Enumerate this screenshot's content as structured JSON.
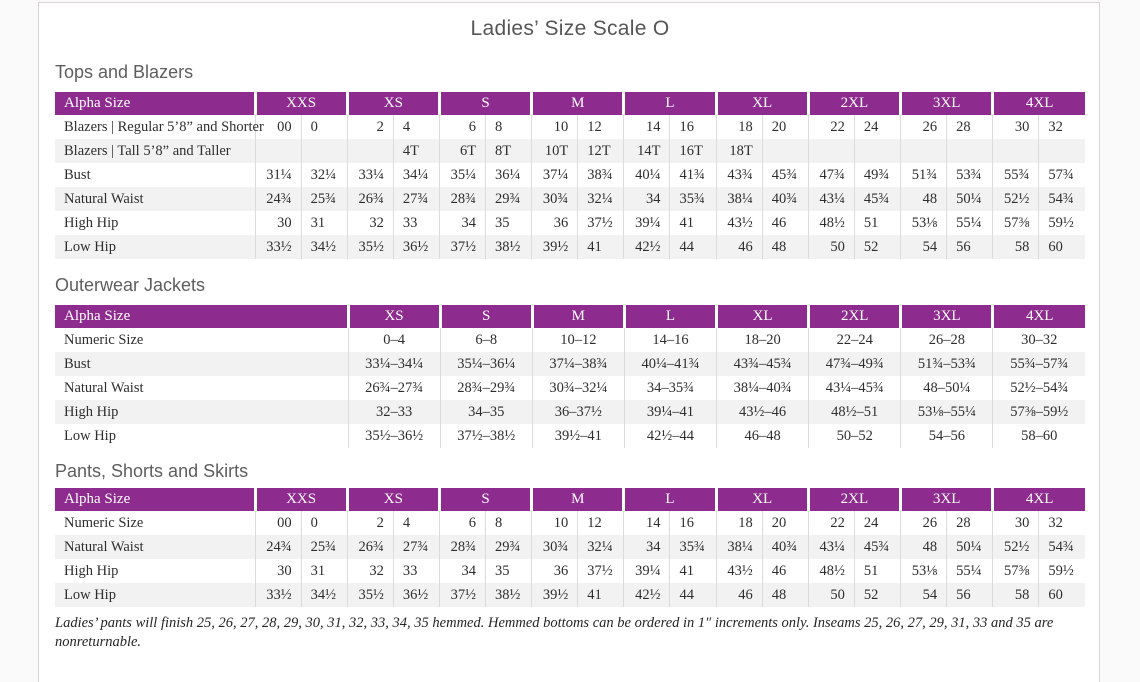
{
  "page": {
    "title": "Ladies’ Size Scale O"
  },
  "colors": {
    "header_purple": "#8e2b8e",
    "row_alt_gray": "#f2f2f2",
    "heading_gray": "#5e5e5e",
    "page_border": "#d9d3d9"
  },
  "sections": [
    {
      "heading": "Tops and Blazers",
      "type": "paired",
      "label_header": "Alpha Size",
      "size_headers": [
        "XXS",
        "XS",
        "S",
        "M",
        "L",
        "XL",
        "2XL",
        "3XL",
        "4XL"
      ],
      "rows": [
        {
          "label": "Blazers | Regular 5’8” and Shorter",
          "cells": [
            "00",
            "0",
            "2",
            "4",
            "6",
            "8",
            "10",
            "12",
            "14",
            "16",
            "18",
            "20",
            "22",
            "24",
            "26",
            "28",
            "30",
            "32"
          ]
        },
        {
          "label": "Blazers | Tall 5’8” and Taller",
          "cells": [
            "",
            "",
            "",
            "4T",
            "6T",
            "8T",
            "10T",
            "12T",
            "14T",
            "16T",
            "18T",
            "",
            "",
            "",
            "",
            "",
            "",
            ""
          ]
        },
        {
          "label": "Bust",
          "cells": [
            "31¼",
            "32¼",
            "33¼",
            "34¼",
            "35¼",
            "36¼",
            "37¼",
            "38¾",
            "40¼",
            "41¾",
            "43¾",
            "45¾",
            "47¾",
            "49¾",
            "51¾",
            "53¾",
            "55¾",
            "57¾"
          ]
        },
        {
          "label": "Natural Waist",
          "cells": [
            "24¾",
            "25¾",
            "26¾",
            "27¾",
            "28¾",
            "29¾",
            "30¾",
            "32¼",
            "34",
            "35¾",
            "38¼",
            "40¾",
            "43¼",
            "45¾",
            "48",
            "50¼",
            "52½",
            "54¾"
          ]
        },
        {
          "label": "High Hip",
          "cells": [
            "30",
            "31",
            "32",
            "33",
            "34",
            "35",
            "36",
            "37½",
            "39¼",
            "41",
            "43½",
            "46",
            "48½",
            "51",
            "53⅛",
            "55¼",
            "57⅜",
            "59½"
          ]
        },
        {
          "label": "Low Hip",
          "cells": [
            "33½",
            "34½",
            "35½",
            "36½",
            "37½",
            "38½",
            "39½",
            "41",
            "42½",
            "44",
            "46",
            "48",
            "50",
            "52",
            "54",
            "56",
            "58",
            "60"
          ]
        }
      ]
    },
    {
      "heading": "Outerwear Jackets",
      "type": "single",
      "label_header": "Alpha Size",
      "size_headers": [
        "XS",
        "S",
        "M",
        "L",
        "XL",
        "2XL",
        "3XL",
        "4XL"
      ],
      "rows": [
        {
          "label": "Numeric Size",
          "cells": [
            "0–4",
            "6–8",
            "10–12",
            "14–16",
            "18–20",
            "22–24",
            "26–28",
            "30–32"
          ]
        },
        {
          "label": "Bust",
          "cells": [
            "33¼–34¼",
            "35¼–36¼",
            "37¼–38¾",
            "40¼–41¾",
            "43¾–45¾",
            "47¾–49¾",
            "51¾–53¾",
            "55¾–57¾"
          ]
        },
        {
          "label": "Natural Waist",
          "cells": [
            "26¾–27¾",
            "28¾–29¾",
            "30¾–32¼",
            "34–35¾",
            "38¼–40¾",
            "43¼–45¾",
            "48–50¼",
            "52½–54¾"
          ]
        },
        {
          "label": "High Hip",
          "cells": [
            "32–33",
            "34–35",
            "36–37½",
            "39¼–41",
            "43½–46",
            "48½–51",
            "53⅛–55¼",
            "57⅜–59½"
          ]
        },
        {
          "label": "Low Hip",
          "cells": [
            "35½–36½",
            "37½–38½",
            "39½–41",
            "42½–44",
            "46–48",
            "50–52",
            "54–56",
            "58–60"
          ]
        }
      ]
    },
    {
      "heading": "Pants, Shorts and Skirts",
      "type": "paired",
      "label_header": "Alpha Size",
      "size_headers": [
        "XXS",
        "XS",
        "S",
        "M",
        "L",
        "XL",
        "2XL",
        "3XL",
        "4XL"
      ],
      "rows": [
        {
          "label": "Numeric Size",
          "cells": [
            "00",
            "0",
            "2",
            "4",
            "6",
            "8",
            "10",
            "12",
            "14",
            "16",
            "18",
            "20",
            "22",
            "24",
            "26",
            "28",
            "30",
            "32"
          ]
        },
        {
          "label": "Natural Waist",
          "cells": [
            "24¾",
            "25¾",
            "26¾",
            "27¾",
            "28¾",
            "29¾",
            "30¾",
            "32¼",
            "34",
            "35¾",
            "38¼",
            "40¾",
            "43¼",
            "45¾",
            "48",
            "50¼",
            "52½",
            "54¾"
          ]
        },
        {
          "label": "High Hip",
          "cells": [
            "30",
            "31",
            "32",
            "33",
            "34",
            "35",
            "36",
            "37½",
            "39¼",
            "41",
            "43½",
            "46",
            "48½",
            "51",
            "53⅛",
            "55¼",
            "57⅜",
            "59½"
          ]
        },
        {
          "label": "Low Hip",
          "cells": [
            "33½",
            "34½",
            "35½",
            "36½",
            "37½",
            "38½",
            "39½",
            "41",
            "42½",
            "44",
            "46",
            "48",
            "50",
            "52",
            "54",
            "56",
            "58",
            "60"
          ]
        }
      ]
    }
  ],
  "footnote": "Ladies’ pants will finish 25, 26, 27, 28, 29, 30, 31, 32, 33, 34, 35 hemmed. Hemmed bottoms can be ordered in 1″ increments only. Inseams 25, 26, 27, 29, 31, 33 and 35 are nonreturnable."
}
